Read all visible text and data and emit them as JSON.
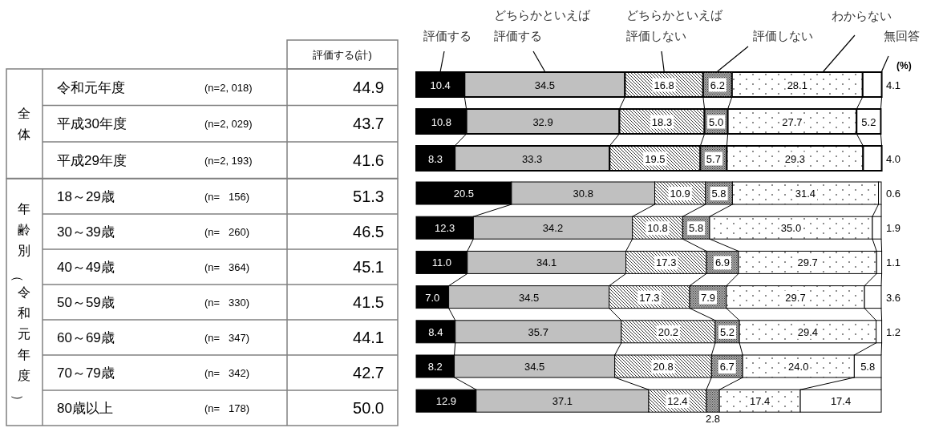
{
  "chart_data": [
    {
      "type": "bar",
      "orientation": "horizontal",
      "stacked": true,
      "xlim": [
        0,
        100
      ],
      "tick_labels": false,
      "legend": "top",
      "categories": [
        "令和元年度",
        "平成30年度",
        "平成29年度"
      ],
      "series": [
        {
          "name": "評価する",
          "color": "#000000",
          "values": [
            10.4,
            10.8,
            8.3
          ],
          "value_labels": [
            "10.4",
            "10.8",
            "8.3"
          ]
        },
        {
          "name": "どちらかといえば評価する",
          "color": "#c0c0c0",
          "values": [
            34.5,
            32.9,
            33.3
          ],
          "value_labels": [
            "34.5",
            "32.9",
            "33.3"
          ]
        },
        {
          "name": "どちらかといえば評価しない",
          "color": "#ffffff",
          "values": [
            16.8,
            18.3,
            19.5
          ],
          "value_labels": [
            "16.8",
            "18.3",
            "19.5"
          ]
        },
        {
          "name": "評価しない",
          "color": "#a6a6a6",
          "values": [
            6.2,
            5.0,
            5.7
          ],
          "value_labels": [
            "6.2",
            "5.0",
            "5.7"
          ]
        },
        {
          "name": "わからない",
          "color": "#ffffff",
          "values": [
            28.1,
            27.7,
            29.3
          ],
          "value_labels": [
            "28.1",
            "27.7",
            "29.3"
          ]
        },
        {
          "name": "無回答",
          "color": "#ffffff",
          "values": [
            4.1,
            5.2,
            4.0
          ],
          "value_labels": [
            "4.1",
            "5.2",
            "4.0"
          ]
        }
      ],
      "annotations": [
        "評価する(計)",
        "(%)",
        "全体",
        "(n=2, 018)",
        "(n=2, 029)",
        "(n=2, 193)",
        "44.9",
        "43.7",
        "41.6"
      ]
    },
    {
      "type": "bar",
      "orientation": "horizontal",
      "stacked": true,
      "xlim": [
        0,
        100
      ],
      "tick_labels": false,
      "categories": [
        "18～29歳",
        "30～39歳",
        "40～49歳",
        "50～59歳",
        "60～69歳",
        "70～79歳",
        "80歳以上"
      ],
      "series": [
        {
          "color": "#000000",
          "values": [
            20.5,
            12.3,
            11.0,
            7.0,
            8.4,
            8.2,
            12.9
          ],
          "value_labels": [
            "20.5",
            "12.3",
            "11.0",
            "7.0",
            "8.4",
            "8.2",
            "12.9"
          ]
        },
        {
          "color": "#c0c0c0",
          "values": [
            30.8,
            34.2,
            34.1,
            34.5,
            35.7,
            34.5,
            37.1
          ],
          "value_labels": [
            "30.8",
            "34.2",
            "34.1",
            "34.5",
            "35.7",
            "34.5",
            "37.1"
          ]
        },
        {
          "color": "#ffffff",
          "values": [
            10.9,
            10.8,
            17.3,
            17.3,
            20.2,
            20.8,
            12.4
          ],
          "value_labels": [
            "10.9",
            "10.8",
            "17.3",
            "17.3",
            "20.2",
            "20.8",
            "12.4"
          ]
        },
        {
          "color": "#a6a6a6",
          "values": [
            5.8,
            5.8,
            6.9,
            7.9,
            5.2,
            6.7,
            2.8
          ],
          "value_labels": [
            "5.8",
            "5.8",
            "6.9",
            "7.9",
            "5.2",
            "6.7",
            "2.8"
          ]
        },
        {
          "color": "#ffffff",
          "values": [
            31.4,
            35.0,
            29.7,
            29.7,
            29.4,
            24.0,
            17.4
          ],
          "value_labels": [
            "31.4",
            "35.0",
            "29.7",
            "29.7",
            "29.4",
            "24.0",
            "17.4"
          ]
        },
        {
          "color": "#ffffff",
          "values": [
            0.6,
            1.9,
            1.1,
            3.6,
            1.2,
            5.8,
            17.4
          ],
          "value_labels": [
            "0.6",
            "1.9",
            "1.1",
            "3.6",
            "1.2",
            "5.8",
            "17.4"
          ]
        }
      ],
      "annotations": [
        "年齢別（令和元年度）",
        "(n=   156)",
        "(n=   260)",
        "(n=   364)",
        "(n=   330)",
        "(n=   347)",
        "(n=   342)",
        "(n=   178)",
        "51.3",
        "46.5",
        "45.1",
        "41.5",
        "44.1",
        "42.7",
        "50.0"
      ]
    }
  ]
}
